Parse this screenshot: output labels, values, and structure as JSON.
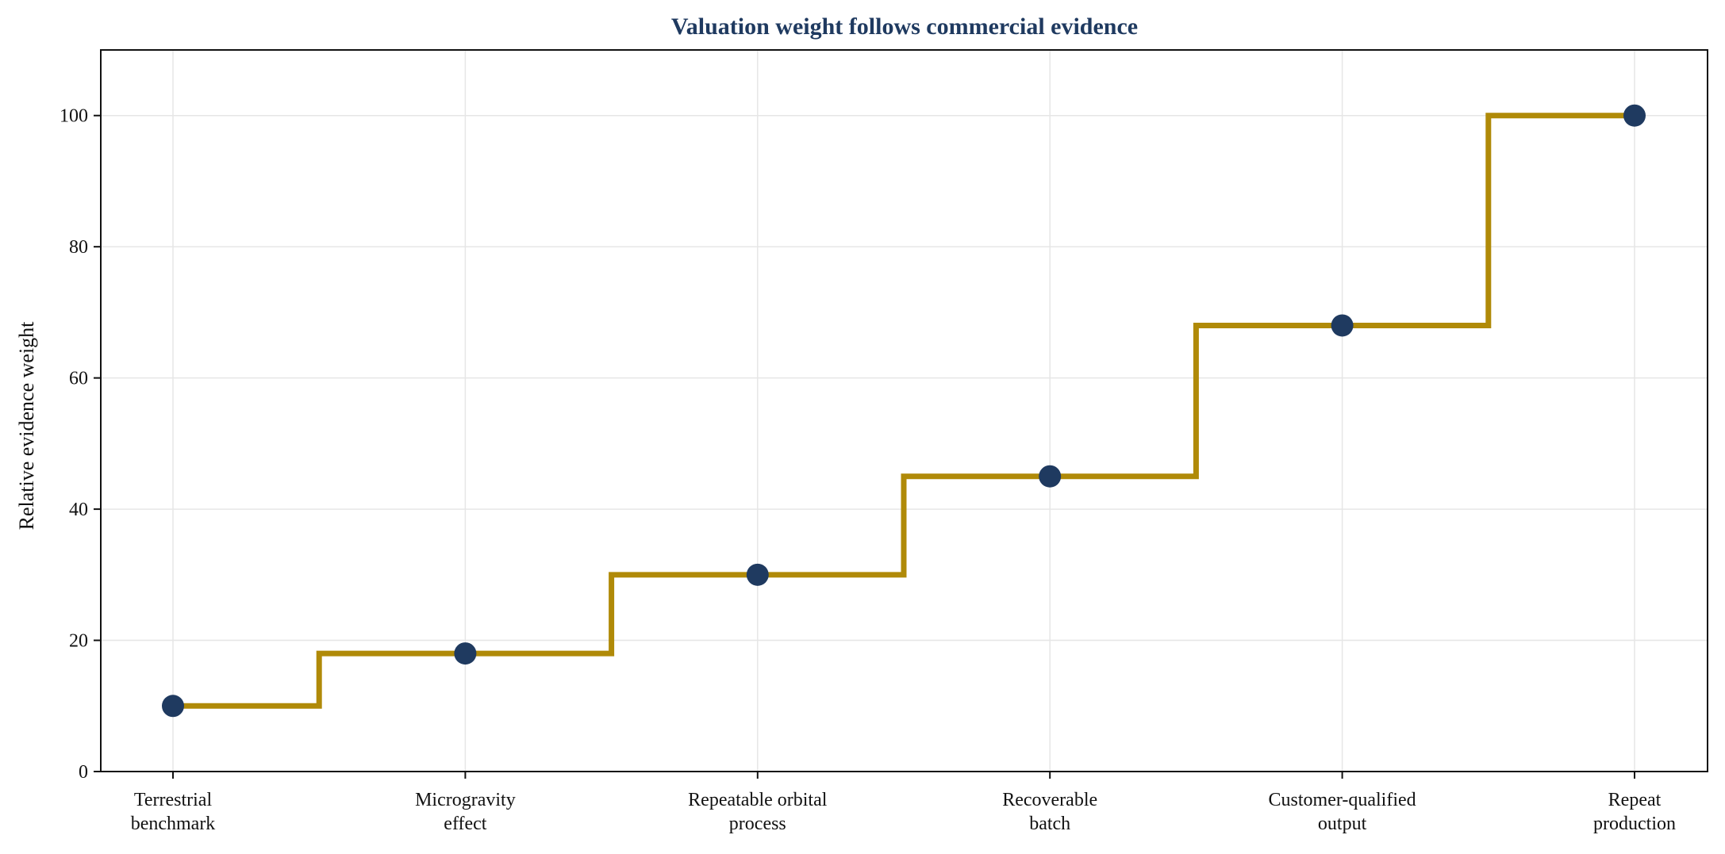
{
  "chart_data": {
    "type": "line",
    "title": "Valuation weight follows commercial evidence",
    "xlabel": "",
    "ylabel": "Relative evidence weight",
    "categories": [
      "Terrestrial\nbenchmark",
      "Microgravity\neffect",
      "Repeatable orbital\nprocess",
      "Recoverable\nbatch",
      "Customer-qualified\noutput",
      "Repeat\nproduction"
    ],
    "series": [
      {
        "values": [
          10,
          18,
          30,
          45,
          68,
          100
        ],
        "style": "step-mid",
        "line_color": "#b08a08",
        "marker_color": "#1f3a60"
      }
    ],
    "ylim": [
      0,
      110
    ],
    "yticks": [
      0,
      20,
      40,
      60,
      80,
      100
    ],
    "grid": true,
    "legend": "none"
  },
  "colors": {
    "title": "#1f3a60",
    "step_line": "#b08a08",
    "marker": "#1f3a60",
    "grid": "#e6e6e6"
  }
}
